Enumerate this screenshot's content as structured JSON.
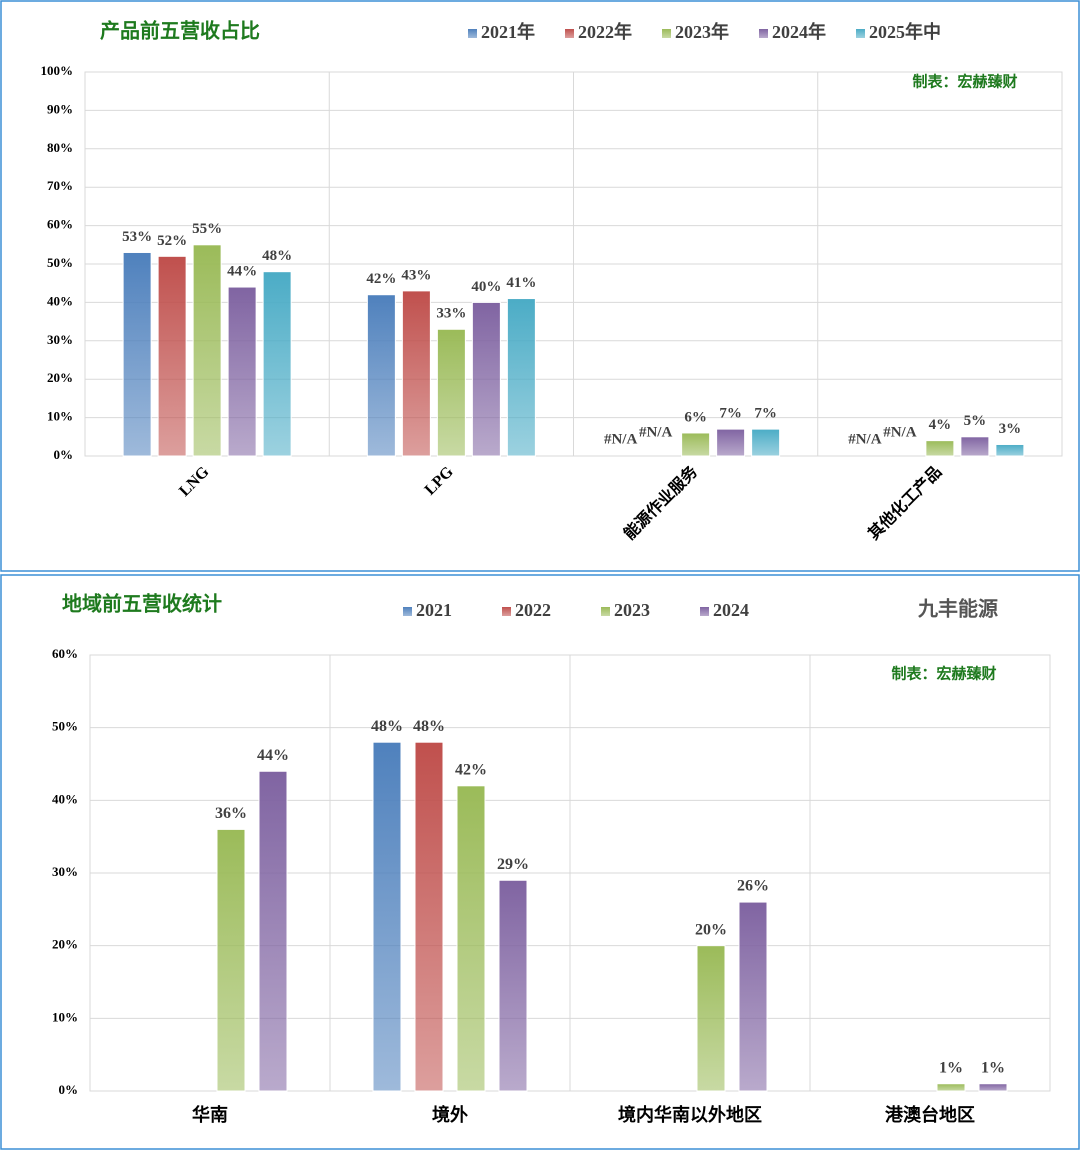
{
  "chart_data": [
    {
      "type": "bar",
      "title": "产品前五营收占比",
      "annotation": "制表：宏赫臻财",
      "categories": [
        "LNG",
        "LPG",
        "能源作业服务",
        "其他化工产品"
      ],
      "series": [
        {
          "name": "2021年",
          "color": "#4f81bd",
          "values": [
            53,
            42,
            null,
            null
          ],
          "value_labels": [
            "53%",
            "42%",
            "#N/A",
            "#N/A"
          ]
        },
        {
          "name": "2022年",
          "color": "#c0504d",
          "values": [
            52,
            43,
            null,
            null
          ],
          "value_labels": [
            "52%",
            "43%",
            "#N/A",
            "#N/A"
          ]
        },
        {
          "name": "2023年",
          "color": "#9bbb59",
          "values": [
            55,
            33,
            6,
            4
          ],
          "value_labels": [
            "55%",
            "33%",
            "6%",
            "4%"
          ]
        },
        {
          "name": "2024年",
          "color": "#8064a2",
          "values": [
            44,
            40,
            7,
            5
          ],
          "value_labels": [
            "44%",
            "40%",
            "7%",
            "5%"
          ]
        },
        {
          "name": "2025年中",
          "color": "#4bacc6",
          "values": [
            48,
            41,
            7,
            3
          ],
          "value_labels": [
            "48%",
            "41%",
            "7%",
            "3%"
          ]
        }
      ],
      "ylim": [
        0,
        100
      ],
      "yticks": [
        {
          "value": 0,
          "label": "0%"
        },
        {
          "value": 10,
          "label": "10%"
        },
        {
          "value": 20,
          "label": "20%"
        },
        {
          "value": 30,
          "label": "30%"
        },
        {
          "value": 40,
          "label": "40%"
        },
        {
          "value": 50,
          "label": "50%"
        },
        {
          "value": 60,
          "label": "60%"
        },
        {
          "value": 70,
          "label": "70%"
        },
        {
          "value": 80,
          "label": "80%"
        },
        {
          "value": 90,
          "label": "90%"
        },
        {
          "value": 100,
          "label": "100%"
        }
      ],
      "grid": true
    },
    {
      "type": "bar",
      "title": "地域前五营收统计",
      "subtitle": "九丰能源",
      "annotation": "制表：宏赫臻财",
      "categories": [
        "华南",
        "境外",
        "境内华南以外地区",
        "港澳台地区"
      ],
      "series": [
        {
          "name": "2021",
          "color": "#4f81bd",
          "values": [
            null,
            48,
            null,
            null
          ],
          "value_labels": [
            null,
            "48%",
            null,
            null
          ]
        },
        {
          "name": "2022",
          "color": "#c0504d",
          "values": [
            null,
            48,
            null,
            null
          ],
          "value_labels": [
            null,
            "48%",
            null,
            null
          ]
        },
        {
          "name": "2023",
          "color": "#9bbb59",
          "values": [
            36,
            42,
            20,
            1
          ],
          "value_labels": [
            "36%",
            "42%",
            "20%",
            "1%"
          ]
        },
        {
          "name": "2024",
          "color": "#8064a2",
          "values": [
            44,
            29,
            26,
            1
          ],
          "value_labels": [
            "44%",
            "29%",
            "26%",
            "1%"
          ]
        }
      ],
      "ylim": [
        0,
        60
      ],
      "yticks": [
        {
          "value": 0,
          "label": "0%"
        },
        {
          "value": 10,
          "label": "10%"
        },
        {
          "value": 20,
          "label": "20%"
        },
        {
          "value": 30,
          "label": "30%"
        },
        {
          "value": 40,
          "label": "40%"
        },
        {
          "value": 50,
          "label": "50%"
        },
        {
          "value": 60,
          "label": "60%"
        }
      ],
      "grid": true
    }
  ]
}
